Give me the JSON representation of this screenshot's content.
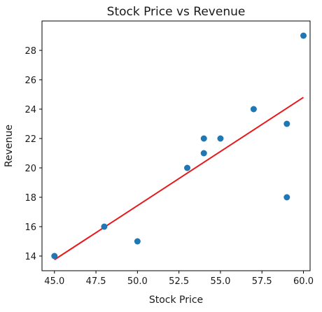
{
  "chart_data": {
    "type": "scatter",
    "title": "Stock Price vs Revenue",
    "xlabel": "Stock Price",
    "ylabel": "Revenue",
    "xlim": [
      44.25,
      60.4
    ],
    "ylim": [
      13.0,
      30.0
    ],
    "x_ticks": [
      45.0,
      47.5,
      50.0,
      52.5,
      55.0,
      57.5,
      60.0
    ],
    "x_tick_labels": [
      "45.0",
      "47.5",
      "50.0",
      "52.5",
      "55.0",
      "57.5",
      "60.0"
    ],
    "y_ticks": [
      14,
      16,
      18,
      20,
      22,
      24,
      26,
      28
    ],
    "y_tick_labels": [
      "14",
      "16",
      "18",
      "20",
      "22",
      "24",
      "26",
      "28"
    ],
    "grid": false,
    "points": [
      {
        "x": 45,
        "y": 14
      },
      {
        "x": 48,
        "y": 16
      },
      {
        "x": 50,
        "y": 15
      },
      {
        "x": 53,
        "y": 20
      },
      {
        "x": 54,
        "y": 22
      },
      {
        "x": 54,
        "y": 21
      },
      {
        "x": 55,
        "y": 22
      },
      {
        "x": 57,
        "y": 24
      },
      {
        "x": 59,
        "y": 23
      },
      {
        "x": 59,
        "y": 18
      },
      {
        "x": 60,
        "y": 29
      }
    ],
    "trend_line": {
      "x": [
        45,
        60
      ],
      "y": [
        13.75,
        24.8
      ]
    },
    "colors": {
      "points": "#1f77b4",
      "trend_line": "#e8191c",
      "axes": "#000000",
      "text": "#1a1a1a"
    }
  }
}
